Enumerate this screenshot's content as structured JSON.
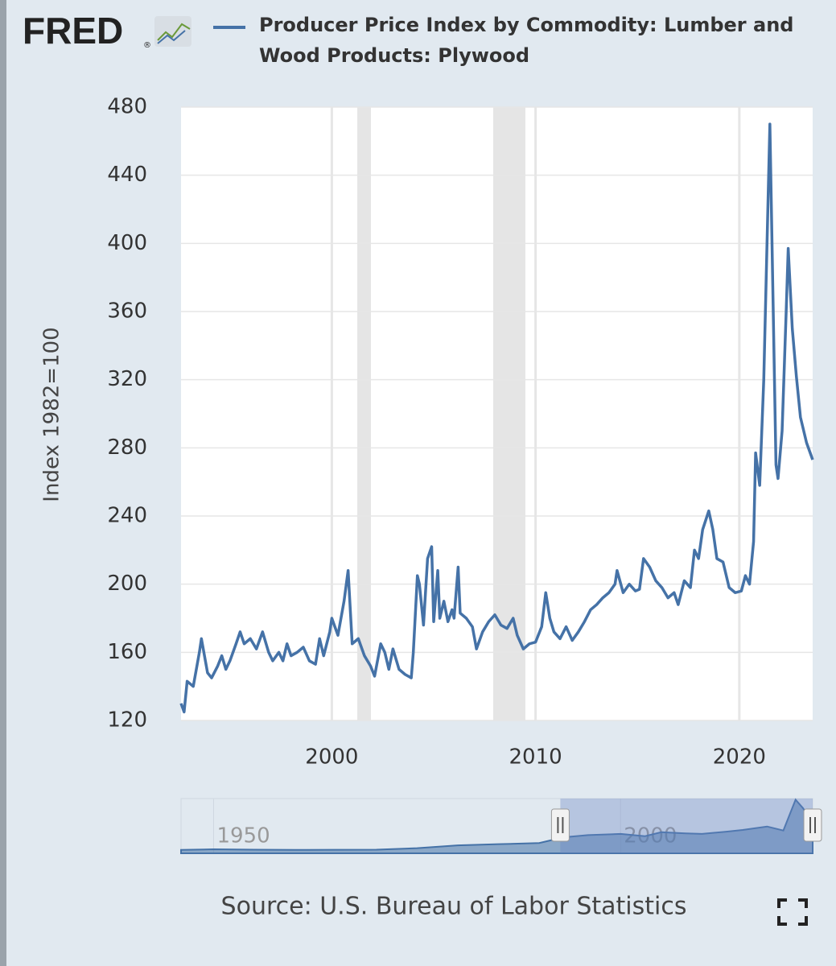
{
  "chart_data": {
    "type": "line",
    "logo": "FRED",
    "logo_mark": "®",
    "y_label": "Index 1982=100",
    "source": "Source: U.S. Bureau of Labor Statistics",
    "x": [
      1992.6,
      1992.75,
      1992.9,
      1993.2,
      1993.5,
      1993.6,
      1993.9,
      1994.1,
      1994.4,
      1994.6,
      1994.8,
      1995.0,
      1995.3,
      1995.5,
      1995.7,
      1996.0,
      1996.3,
      1996.6,
      1996.9,
      1997.1,
      1997.4,
      1997.6,
      1997.8,
      1998.0,
      1998.3,
      1998.6,
      1998.9,
      1999.2,
      1999.4,
      1999.6,
      1999.9,
      2000.0,
      2000.3,
      2000.6,
      2000.8,
      2001.0,
      2001.3,
      2001.6,
      2001.9,
      2002.1,
      2002.4,
      2002.6,
      2002.8,
      2003.0,
      2003.3,
      2003.6,
      2003.9,
      2004.0,
      2004.2,
      2004.3,
      2004.5,
      2004.7,
      2004.9,
      2005.0,
      2005.2,
      2005.3,
      2005.5,
      2005.7,
      2005.9,
      2006.0,
      2006.2,
      2006.3,
      2006.6,
      2006.9,
      2007.1,
      2007.4,
      2007.7,
      2008.0,
      2008.3,
      2008.6,
      2008.9,
      2009.1,
      2009.4,
      2009.7,
      2010.0,
      2010.3,
      2010.5,
      2010.7,
      2010.9,
      2011.2,
      2011.5,
      2011.8,
      2012.1,
      2012.4,
      2012.7,
      2013.0,
      2013.3,
      2013.6,
      2013.9,
      2014.0,
      2014.3,
      2014.6,
      2014.9,
      2015.1,
      2015.3,
      2015.6,
      2015.9,
      2016.2,
      2016.5,
      2016.8,
      2017.0,
      2017.3,
      2017.6,
      2017.8,
      2018.0,
      2018.2,
      2018.5,
      2018.7,
      2018.9,
      2019.2,
      2019.5,
      2019.8,
      2020.1,
      2020.3,
      2020.5,
      2020.7,
      2020.8,
      2021.0,
      2021.2,
      2021.5,
      2021.8,
      2021.9,
      2022.1,
      2022.3,
      2022.4,
      2022.6,
      2022.8,
      2023.0,
      2023.3,
      2023.6
    ],
    "series": [
      {
        "name": "Producer Price Index by Commodity: Lumber and Wood Products: Plywood",
        "color": "#4572a7",
        "values": [
          130,
          125,
          143,
          140,
          160,
          168,
          148,
          145,
          152,
          158,
          150,
          155,
          165,
          172,
          165,
          168,
          162,
          172,
          160,
          155,
          160,
          155,
          165,
          158,
          160,
          163,
          155,
          153,
          168,
          158,
          172,
          180,
          170,
          190,
          208,
          165,
          168,
          158,
          152,
          146,
          165,
          160,
          150,
          162,
          150,
          147,
          145,
          160,
          205,
          200,
          176,
          215,
          222,
          178,
          208,
          180,
          190,
          178,
          185,
          180,
          210,
          183,
          180,
          175,
          162,
          172,
          178,
          182,
          176,
          174,
          180,
          170,
          162,
          165,
          166,
          175,
          195,
          180,
          172,
          168,
          175,
          167,
          172,
          178,
          185,
          188,
          192,
          195,
          200,
          208,
          195,
          200,
          196,
          197,
          215,
          210,
          202,
          198,
          192,
          195,
          188,
          202,
          198,
          220,
          215,
          232,
          243,
          232,
          215,
          213,
          198,
          195,
          196,
          205,
          200,
          225,
          277,
          258,
          320,
          470,
          270,
          262,
          290,
          360,
          397,
          350,
          322,
          298,
          283,
          273
        ]
      }
    ],
    "xlim": [
      1992.6,
      2023.6
    ],
    "xticks": [
      2000,
      2010,
      2020
    ],
    "ylim": [
      120,
      480
    ],
    "yticks": [
      120,
      160,
      200,
      240,
      280,
      320,
      360,
      400,
      440,
      480
    ],
    "grid": true,
    "recessions": [
      [
        2001.25,
        2001.92
      ],
      [
        2007.92,
        2009.5
      ]
    ],
    "recession_color": "#e5e5e5",
    "navigator": {
      "x": [
        1946,
        1950,
        1955,
        1960,
        1965,
        1970,
        1975,
        1980,
        1985,
        1990,
        1993,
        1996,
        2000,
        2003,
        2005,
        2008,
        2010,
        2013,
        2015,
        2018,
        2020,
        2021.5,
        2022.4,
        2023.6
      ],
      "values": [
        30,
        35,
        32,
        30,
        31,
        32,
        45,
        70,
        80,
        90,
        140,
        160,
        170,
        150,
        185,
        175,
        170,
        190,
        205,
        235,
        200,
        470,
        397,
        273
      ],
      "xlim": [
        1946,
        2023.6
      ],
      "ylim": [
        0,
        480
      ],
      "xticks": [
        1950,
        2000
      ]
    }
  }
}
